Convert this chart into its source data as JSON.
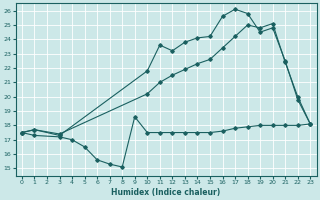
{
  "xlabel": "Humidex (Indice chaleur)",
  "bg_color": "#cce8e8",
  "line_color": "#1a6060",
  "grid_color": "#ffffff",
  "xlim": [
    -0.5,
    23.5
  ],
  "ylim": [
    14.5,
    26.5
  ],
  "xticks": [
    0,
    1,
    2,
    3,
    4,
    5,
    6,
    7,
    8,
    9,
    10,
    11,
    12,
    13,
    14,
    15,
    16,
    17,
    18,
    19,
    20,
    21,
    22,
    23
  ],
  "yticks": [
    15,
    16,
    17,
    18,
    19,
    20,
    21,
    22,
    23,
    24,
    25,
    26
  ],
  "line_zigzag_x": [
    0,
    1,
    3,
    10,
    11,
    12,
    13,
    14,
    15,
    16,
    17,
    18,
    19,
    20,
    21,
    22,
    23
  ],
  "line_zigzag_y": [
    17.5,
    17.7,
    17.3,
    21.8,
    23.6,
    23.2,
    23.8,
    24.1,
    24.2,
    25.6,
    26.1,
    25.8,
    24.5,
    24.8,
    22.5,
    19.8,
    18.1
  ],
  "line_straight_x": [
    0,
    1,
    3,
    10,
    11,
    12,
    13,
    14,
    15,
    16,
    17,
    18,
    19,
    20,
    21,
    22,
    23
  ],
  "line_straight_y": [
    17.5,
    17.7,
    17.4,
    20.2,
    21.0,
    21.5,
    21.9,
    22.3,
    22.6,
    23.4,
    24.2,
    25.0,
    24.8,
    25.1,
    22.4,
    20.0,
    18.1
  ],
  "line_ushape_x": [
    0,
    1,
    3,
    4,
    5,
    6,
    7,
    8,
    9,
    10,
    11,
    12,
    13,
    14,
    15,
    16,
    17,
    18,
    19,
    20,
    21,
    22,
    23
  ],
  "line_ushape_y": [
    17.5,
    17.3,
    17.2,
    17.0,
    16.5,
    15.6,
    15.3,
    15.1,
    18.6,
    17.5,
    17.5,
    17.5,
    17.5,
    17.5,
    17.5,
    17.6,
    17.8,
    17.9,
    18.0,
    18.0,
    18.0,
    18.0,
    18.1
  ]
}
